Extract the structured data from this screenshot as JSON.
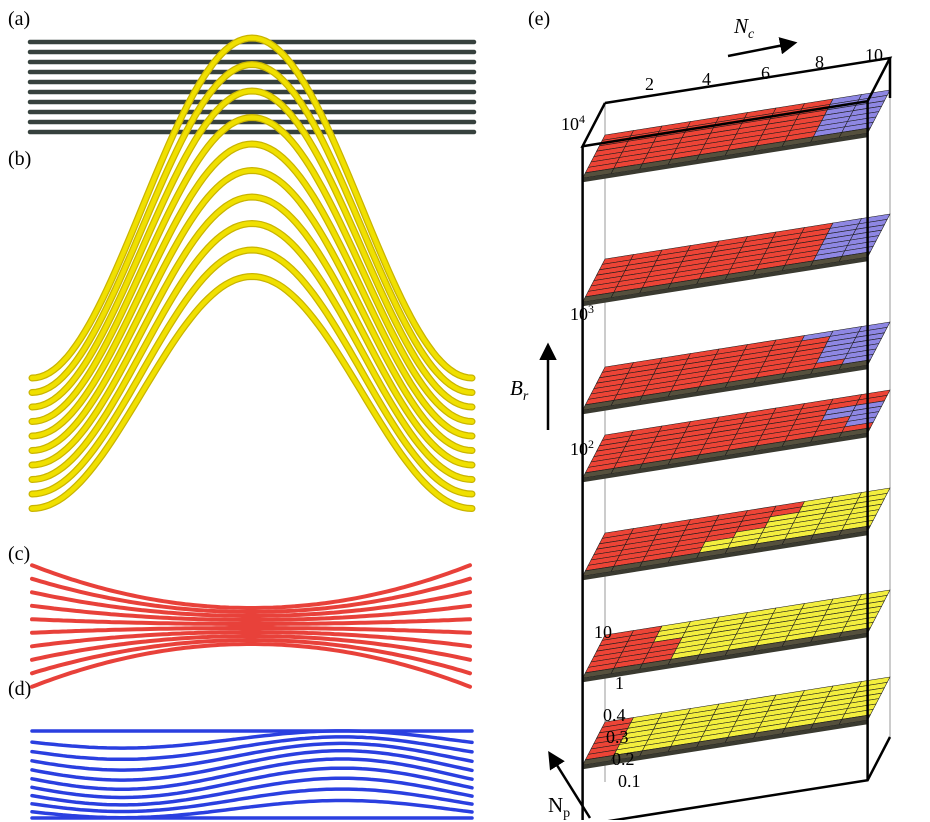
{
  "panels": {
    "a": "(a)",
    "b": "(b)",
    "c": "(c)",
    "d": "(d)",
    "e": "(e)"
  },
  "colors": {
    "straight": "#36413d",
    "buckled": "#f0e000",
    "pinched": "#e8413a",
    "wavy": "#2a3fe0",
    "region_red": "#ec4436",
    "region_blue": "#8e87e3",
    "region_yellow": "#f3ee3e",
    "region_dark": "#55503d"
  },
  "axes": {
    "nc_label": "N",
    "nc_sub": "c",
    "nc_ticks": [
      "2",
      "4",
      "6",
      "8",
      "10"
    ],
    "br_label": "B",
    "br_sub": "r",
    "br_ticks": [
      {
        "base": "10",
        "exp": "4"
      },
      {
        "base": "10",
        "exp": "3"
      },
      {
        "base": "10",
        "exp": "2"
      },
      {
        "base": "10",
        "exp": ""
      },
      {
        "base": "1",
        "exp": ""
      }
    ],
    "np_label": "N",
    "np_sub": "p",
    "np_ticks": [
      "0.4",
      "0.3",
      "0.2",
      "0.1"
    ]
  },
  "phase_layers": [
    {
      "br": 10000,
      "boundaries": {
        "red_yellow": null,
        "red_blue": 8
      }
    },
    {
      "br": 3000,
      "boundaries": {
        "red_yellow": null,
        "red_blue": 8
      }
    },
    {
      "br": 1000,
      "boundaries": {
        "red_yellow": null,
        "red_blue": 8
      }
    },
    {
      "br": 100,
      "boundaries": {
        "red_yellow": null,
        "red_blue": 8
      }
    },
    {
      "br": 30,
      "boundaries": {
        "red_yellow": 7,
        "red_blue": null
      }
    },
    {
      "br": 10,
      "boundaries": {
        "red_yellow": 3,
        "red_blue": null
      }
    },
    {
      "br": 1,
      "boundaries": {
        "red_yellow": 1,
        "red_blue": null
      }
    }
  ]
}
